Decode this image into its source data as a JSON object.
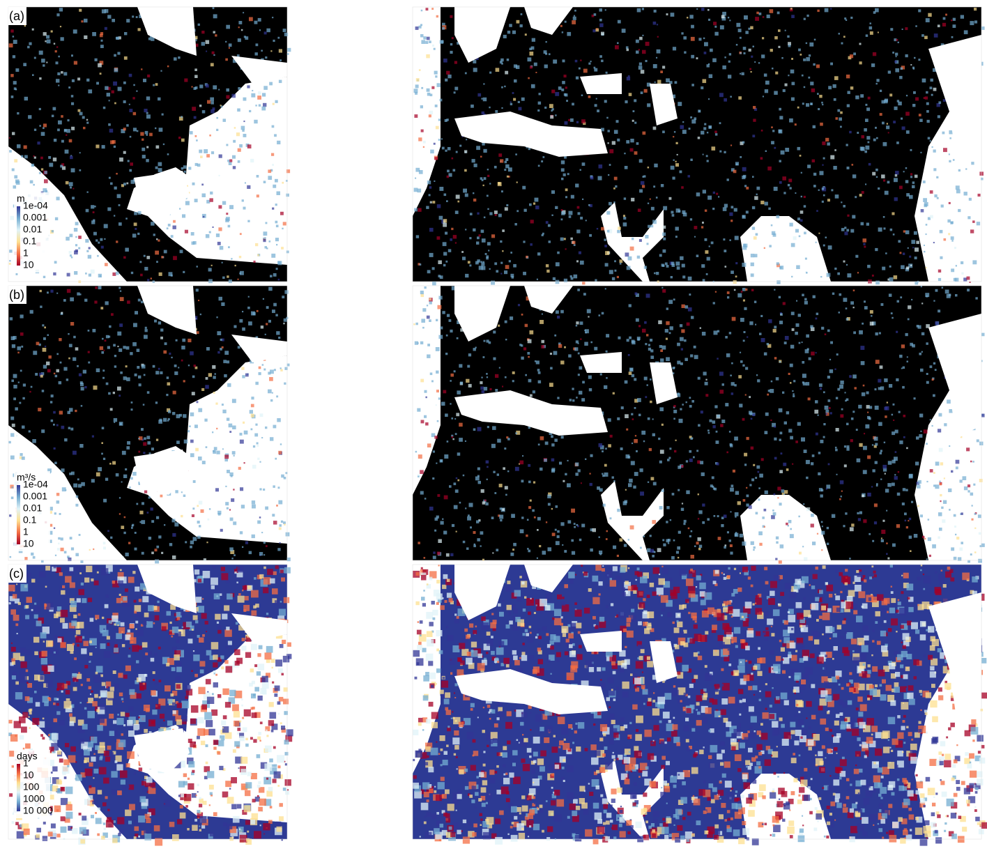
{
  "panels": [
    {
      "label": "(a)",
      "legend": {
        "title": "m",
        "ticks": [
          "1e-04",
          "0.001",
          "0.01",
          "0.1",
          "1",
          "10"
        ],
        "colors": [
          "#313695",
          "#74add1",
          "#e0f3f8",
          "#fee090",
          "#f46d43",
          "#a50026"
        ]
      }
    },
    {
      "label": "(b)",
      "legend": {
        "title": "m³/s",
        "ticks": [
          "1e-04",
          "0.001",
          "0.01",
          "0.1",
          "1",
          "10"
        ],
        "colors": [
          "#313695",
          "#74add1",
          "#e0f3f8",
          "#fee090",
          "#f46d43",
          "#a50026"
        ]
      }
    },
    {
      "label": "(c)",
      "legend": {
        "title": "days",
        "ticks": [
          "1",
          "10",
          "100",
          "1000",
          "10 000"
        ],
        "colors": [
          "#a50026",
          "#f46d43",
          "#fee090",
          "#e0f3f8",
          "#74add1",
          "#313695"
        ]
      }
    }
  ]
}
